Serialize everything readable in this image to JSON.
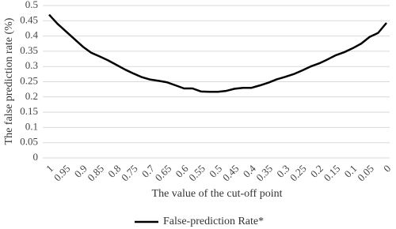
{
  "chart_data": {
    "type": "line",
    "y_label": "The false prediction rate (%)",
    "x_label": "The value of the cut-off point",
    "categories": [
      "1",
      null,
      "0.95",
      null,
      "0.9",
      null,
      "0.85",
      null,
      "0.8",
      null,
      "0.75",
      null,
      "0.7",
      null,
      "0.65",
      null,
      "0.6",
      null,
      "0.55",
      null,
      "0.5",
      null,
      "0.45",
      null,
      "0.4",
      null,
      "0.35",
      null,
      "0.3",
      null,
      "0.25",
      null,
      "0.2",
      null,
      "0.15",
      null,
      "0.1",
      null,
      "0.05",
      null,
      "0"
    ],
    "series": [
      {
        "name": "False-prediction Rate*",
        "color": "#000000",
        "values": [
          0.47,
          0.44,
          0.415,
          0.39,
          0.365,
          0.345,
          0.333,
          0.32,
          0.305,
          0.29,
          0.277,
          0.265,
          0.257,
          0.253,
          0.248,
          0.238,
          0.228,
          0.228,
          0.218,
          0.217,
          0.217,
          0.22,
          0.227,
          0.23,
          0.23,
          0.238,
          0.247,
          0.258,
          0.266,
          0.275,
          0.287,
          0.3,
          0.31,
          0.323,
          0.337,
          0.347,
          0.36,
          0.375,
          0.397,
          0.41,
          0.443
        ]
      }
    ],
    "ylim": [
      0,
      0.5
    ],
    "yticks": [
      0,
      0.05,
      0.1,
      0.15,
      0.2,
      0.25,
      0.3,
      0.35,
      0.4,
      0.45,
      0.5
    ],
    "grid": true,
    "legend": "bottom"
  }
}
